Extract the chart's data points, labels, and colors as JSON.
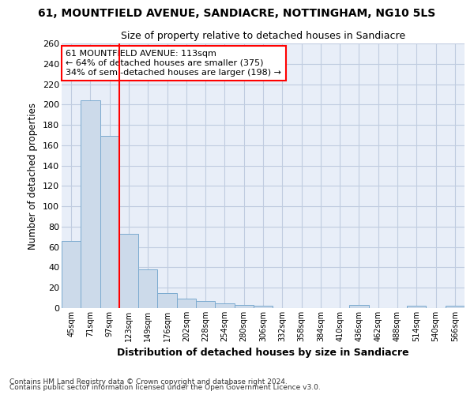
{
  "title": "61, MOUNTFIELD AVENUE, SANDIACRE, NOTTINGHAM, NG10 5LS",
  "subtitle": "Size of property relative to detached houses in Sandiacre",
  "xlabel": "Distribution of detached houses by size in Sandiacre",
  "ylabel": "Number of detached properties",
  "bar_color": "#ccdaea",
  "bar_edge_color": "#7baacf",
  "bg_color": "#e8eef8",
  "grid_color": "#c0cce0",
  "annotation_line1": "61 MOUNTFIELD AVENUE: 113sqm",
  "annotation_line2": "← 64% of detached houses are smaller (375)",
  "annotation_line3": "34% of semi-detached houses are larger (198) →",
  "annotation_box_color": "white",
  "annotation_box_edge_color": "red",
  "vline_color": "red",
  "categories": [
    "45sqm",
    "71sqm",
    "97sqm",
    "123sqm",
    "149sqm",
    "176sqm",
    "202sqm",
    "228sqm",
    "254sqm",
    "280sqm",
    "306sqm",
    "332sqm",
    "358sqm",
    "384sqm",
    "410sqm",
    "436sqm",
    "462sqm",
    "488sqm",
    "514sqm",
    "540sqm",
    "566sqm"
  ],
  "values": [
    66,
    204,
    169,
    73,
    38,
    15,
    9,
    7,
    5,
    3,
    2,
    0,
    0,
    0,
    0,
    3,
    0,
    0,
    2,
    0,
    2
  ],
  "ylim": [
    0,
    260
  ],
  "yticks": [
    0,
    20,
    40,
    60,
    80,
    100,
    120,
    140,
    160,
    180,
    200,
    220,
    240,
    260
  ],
  "vline_x_index": 2.5,
  "footer1": "Contains HM Land Registry data © Crown copyright and database right 2024.",
  "footer2": "Contains public sector information licensed under the Open Government Licence v3.0."
}
